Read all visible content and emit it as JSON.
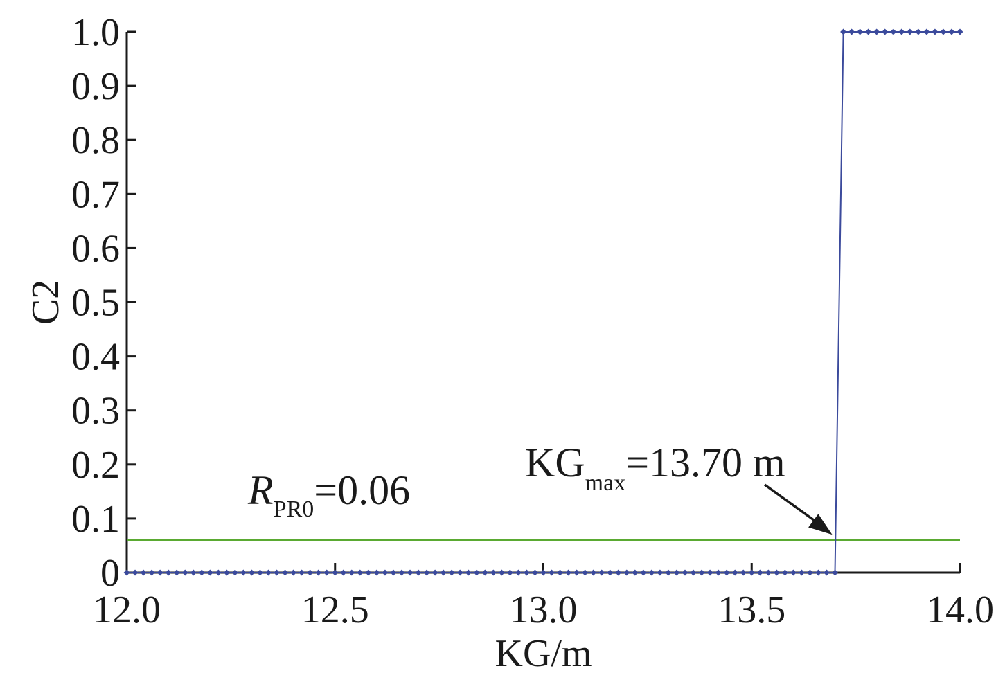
{
  "chart_data": {
    "type": "line",
    "xlabel": "KG/m",
    "ylabel": "C2",
    "xlim": [
      12.0,
      14.0
    ],
    "ylim": [
      0,
      1.0
    ],
    "x_ticks": [
      "12.0",
      "12.5",
      "13.0",
      "13.5",
      "14.0"
    ],
    "x_tick_values": [
      12.0,
      12.5,
      13.0,
      13.5,
      14.0
    ],
    "y_ticks": [
      "0",
      "0.1",
      "0.2",
      "0.3",
      "0.4",
      "0.5",
      "0.6",
      "0.7",
      "0.8",
      "0.9",
      "1.0"
    ],
    "y_tick_values": [
      0,
      0.1,
      0.2,
      0.3,
      0.4,
      0.5,
      0.6,
      0.7,
      0.8,
      0.9,
      1.0
    ],
    "grid": false,
    "series": [
      {
        "color": "#3b4a9c",
        "marker": "diamond",
        "x_start": 12.0,
        "x_step": 0.02,
        "x_end": 14.0,
        "step_at": 13.7,
        "value_before": 0,
        "value_after": 1
      }
    ],
    "reference_line": {
      "y": 0.06,
      "color": "#5aaa32"
    },
    "annotations": [
      {
        "id": "rpr0",
        "main": "R",
        "sub": "PR0",
        "rest": "=0.06"
      },
      {
        "id": "kgmax",
        "main": "KG",
        "sub": "max",
        "rest": "=13.70 m",
        "arrow_to": [
          13.7,
          0.06
        ]
      }
    ]
  }
}
